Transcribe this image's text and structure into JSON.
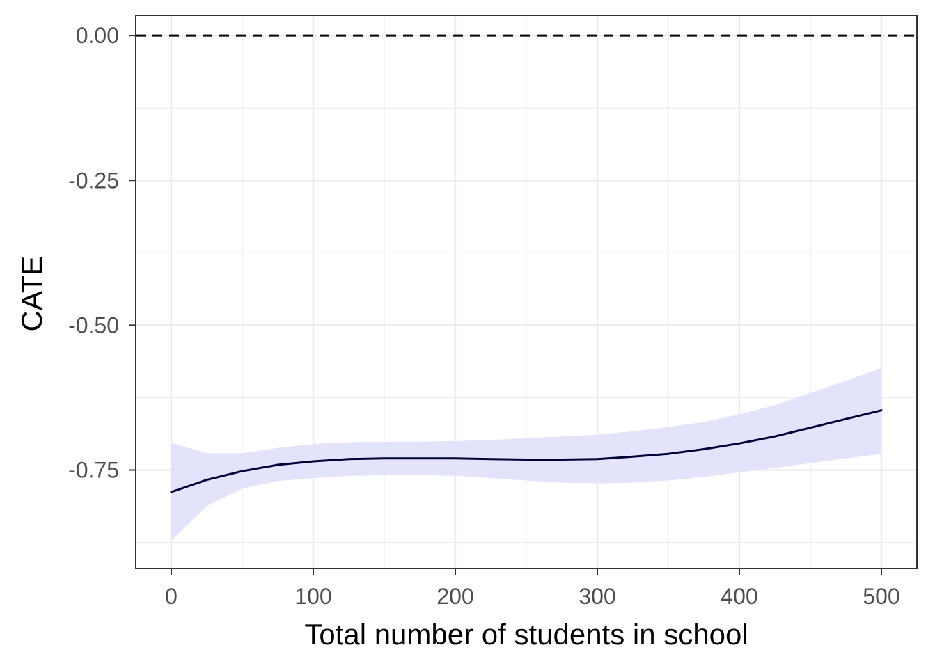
{
  "chart_data": {
    "type": "line",
    "title": "",
    "xlabel": "Total number of students in school",
    "ylabel": "CATE",
    "xlim": [
      -25,
      525
    ],
    "ylim": [
      -0.92,
      0.035
    ],
    "x_ticks": [
      0,
      100,
      200,
      300,
      400,
      500
    ],
    "x_tick_labels": [
      "0",
      "100",
      "200",
      "300",
      "400",
      "500"
    ],
    "y_ticks": [
      0.0,
      -0.25,
      -0.5,
      -0.75
    ],
    "y_tick_labels": [
      "0.00",
      "-0.25",
      "-0.50",
      "-0.75"
    ],
    "x_minor_ticks": [
      50,
      150,
      250,
      350,
      450
    ],
    "y_minor_ticks": [
      -0.125,
      -0.375,
      -0.625,
      -0.875
    ],
    "grid": true,
    "reference_line": {
      "y": 0.0,
      "style": "dashed",
      "color": "#000000"
    },
    "series": [
      {
        "x": [
          0,
          25,
          50,
          75,
          100,
          125,
          150,
          175,
          200,
          225,
          250,
          275,
          300,
          325,
          350,
          375,
          400,
          425,
          450,
          475,
          500
        ],
        "y": [
          -0.788,
          -0.767,
          -0.752,
          -0.741,
          -0.735,
          -0.731,
          -0.73,
          -0.73,
          -0.73,
          -0.731,
          -0.732,
          -0.732,
          -0.731,
          -0.727,
          -0.722,
          -0.714,
          -0.704,
          -0.692,
          -0.677,
          -0.662,
          -0.647
        ],
        "ci_lower": [
          -0.872,
          -0.812,
          -0.782,
          -0.769,
          -0.764,
          -0.76,
          -0.759,
          -0.759,
          -0.76,
          -0.764,
          -0.768,
          -0.772,
          -0.773,
          -0.772,
          -0.768,
          -0.762,
          -0.754,
          -0.746,
          -0.738,
          -0.73,
          -0.722
        ],
        "ci_upper": [
          -0.703,
          -0.721,
          -0.721,
          -0.712,
          -0.705,
          -0.702,
          -0.701,
          -0.701,
          -0.7,
          -0.698,
          -0.695,
          -0.692,
          -0.689,
          -0.683,
          -0.676,
          -0.667,
          -0.654,
          -0.638,
          -0.617,
          -0.596,
          -0.574
        ],
        "line_color": "#00003b",
        "ribbon_color": "#e3e3fb"
      }
    ]
  }
}
